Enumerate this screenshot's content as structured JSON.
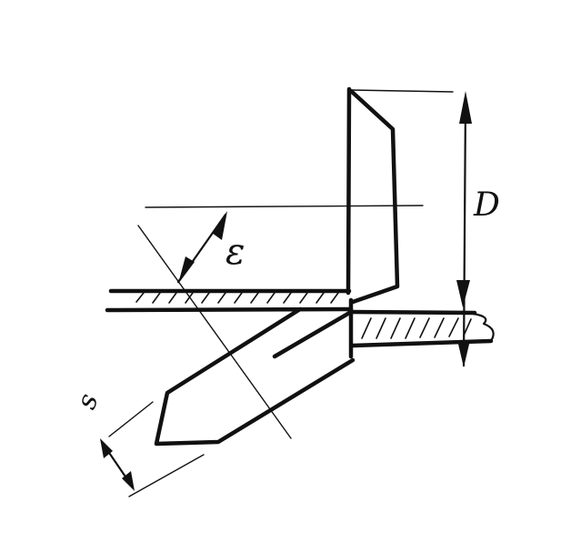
{
  "labels": {
    "epsilon": "ε",
    "depth": "D",
    "thickness": "s"
  },
  "colors": {
    "ink": "#111111",
    "paper": "#ffffff"
  }
}
